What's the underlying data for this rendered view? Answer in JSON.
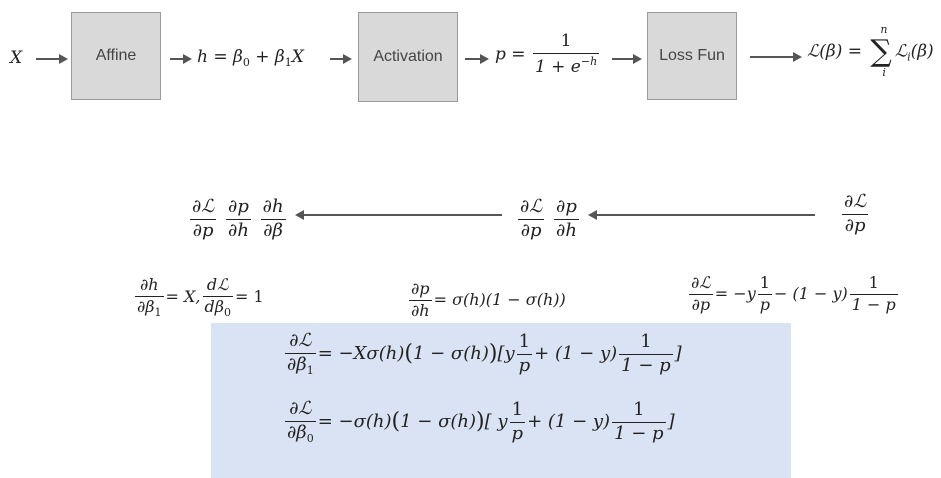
{
  "nodes": {
    "input": "X",
    "affine": "Affine",
    "activation": "Activation",
    "loss": "Loss Fun"
  },
  "forward": {
    "h_eq": "h = β₀ + β₁X",
    "p_lhs": "p =",
    "p_num": "1",
    "p_den": "1 + e^{−h}",
    "loss_lhs": "ℒ(β) =",
    "loss_sum_upper": "n",
    "loss_sum_lower": "i",
    "loss_rhs": "ℒᵢ(β)"
  },
  "backward": {
    "chain3": [
      "∂ℒ/∂p",
      "∂p/∂h",
      "∂h/∂β"
    ],
    "chain2": [
      "∂ℒ/∂p",
      "∂p/∂h"
    ],
    "chain1": "∂ℒ/∂p"
  },
  "partials": {
    "dh": "∂h/∂β₁ = X, dℒ/dβ₀ = 1",
    "dp": "∂p/∂h = σ(h)(1 − σ(h))",
    "dL": "∂ℒ/∂p = −y 1/p − (1 − y) 1/(1 − p)"
  },
  "results": {
    "beta1": "∂ℒ/∂β₁ = −Xσ(h)(1 − σ(h))[y 1/p + (1 − y) 1/(1 − p)]",
    "beta0": "∂ℒ/∂β₀ = −σ(h)(1 − σ(h))[ y 1/p + (1 − y) 1/(1 − p)]"
  },
  "colors": {
    "box_fill": "#d9d9d9",
    "panel_fill": "#dae3f3",
    "arrow": "#555555"
  }
}
